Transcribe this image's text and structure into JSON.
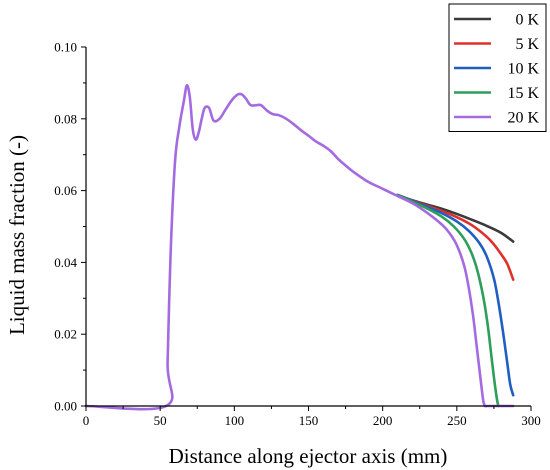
{
  "chart_data": {
    "type": "line",
    "xlabel": "Distance along ejector axis (mm)",
    "ylabel": "Liquid mass fraction (-)",
    "xlim": [
      0,
      300
    ],
    "ylim": [
      0,
      0.1
    ],
    "xticks": [
      "0",
      "50",
      "100",
      "150",
      "200",
      "250",
      "300"
    ],
    "yticks": [
      "0.00",
      "0.02",
      "0.04",
      "0.06",
      "0.08",
      "0.10"
    ],
    "grid": false,
    "legend_position": "top-right",
    "series": [
      {
        "name": "0 K",
        "color": "#3b3b3b",
        "x": [
          210,
          220,
          230,
          240,
          250,
          260,
          270,
          280,
          288
        ],
        "y": [
          0.0588,
          0.0573,
          0.0561,
          0.0549,
          0.0535,
          0.0519,
          0.0502,
          0.0482,
          0.0458
        ]
      },
      {
        "name": "5 K",
        "color": "#e0302c",
        "x": [
          210,
          220,
          230,
          240,
          250,
          260,
          270,
          275,
          280,
          284,
          288
        ],
        "y": [
          0.0588,
          0.0572,
          0.0558,
          0.0543,
          0.0526,
          0.0504,
          0.0472,
          0.045,
          0.0422,
          0.0396,
          0.0352
        ]
      },
      {
        "name": "10 K",
        "color": "#1f5fbf",
        "x": [
          210,
          220,
          230,
          240,
          250,
          258,
          265,
          270,
          275,
          278,
          281,
          284,
          286,
          288
        ],
        "y": [
          0.0588,
          0.0571,
          0.0555,
          0.0537,
          0.0514,
          0.0488,
          0.0455,
          0.0418,
          0.0355,
          0.029,
          0.021,
          0.012,
          0.006,
          0.003
        ]
      },
      {
        "name": "15 K",
        "color": "#2e9e5a",
        "x": [
          210,
          220,
          230,
          240,
          248,
          255,
          260,
          264,
          268,
          271,
          273,
          275,
          277,
          278
        ],
        "y": [
          0.0587,
          0.0569,
          0.055,
          0.0527,
          0.05,
          0.0465,
          0.0425,
          0.0375,
          0.03,
          0.022,
          0.015,
          0.008,
          0.002,
          0.0
        ]
      },
      {
        "name": "20 K",
        "color": "#a46be0",
        "x": [
          0,
          54,
          55,
          57,
          60,
          63,
          66,
          68,
          70,
          72,
          74,
          76,
          78,
          80,
          83,
          86,
          90,
          94,
          98,
          102,
          105,
          108,
          111,
          115,
          118,
          122,
          126,
          130,
          135,
          140,
          145,
          150,
          155,
          160,
          165,
          170,
          175,
          180,
          190,
          200,
          210,
          220,
          230,
          240,
          245,
          250,
          255,
          258,
          261,
          263,
          265,
          267,
          268,
          269,
          270,
          271,
          280,
          288
        ],
        "y": [
          0.0,
          0.0,
          0.012,
          0.042,
          0.068,
          0.078,
          0.085,
          0.0893,
          0.086,
          0.077,
          0.0742,
          0.0762,
          0.08,
          0.083,
          0.083,
          0.0795,
          0.08,
          0.0825,
          0.085,
          0.0867,
          0.0868,
          0.0855,
          0.0838,
          0.0838,
          0.0838,
          0.0823,
          0.0813,
          0.081,
          0.08,
          0.0785,
          0.0768,
          0.0753,
          0.0737,
          0.0725,
          0.071,
          0.0688,
          0.067,
          0.0653,
          0.0625,
          0.0605,
          0.0585,
          0.0565,
          0.0538,
          0.0505,
          0.0482,
          0.0448,
          0.039,
          0.033,
          0.025,
          0.018,
          0.011,
          0.004,
          0.001,
          0.0,
          0.0,
          0.0,
          0.0,
          0.0
        ]
      }
    ]
  }
}
